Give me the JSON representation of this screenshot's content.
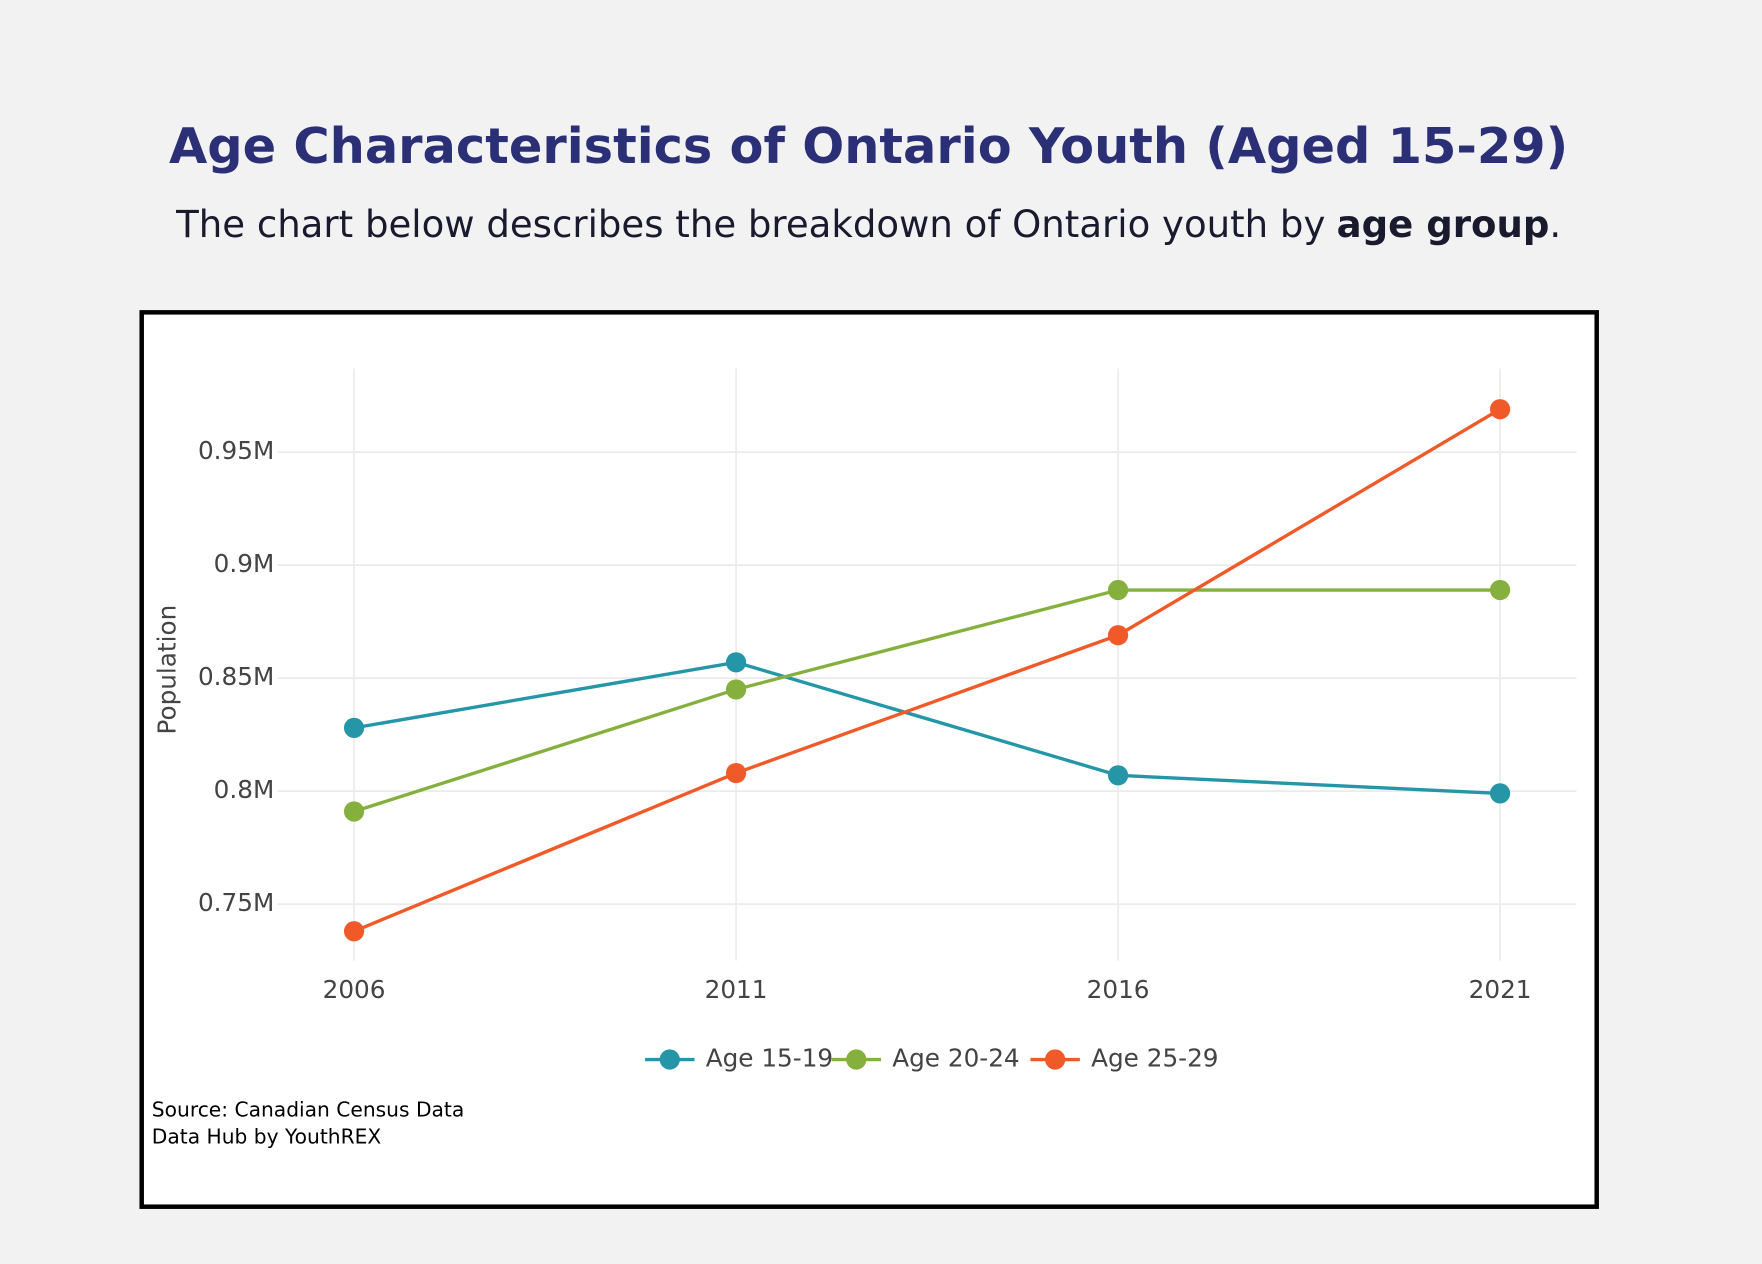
{
  "chart_data": {
    "type": "line",
    "title": "Age Characteristics of Ontario Youth (Aged 15-29)",
    "subtitle": [
      "The chart below describes the breakdown of Ontario youth by",
      "age group",
      "."
    ],
    "y_label": "Population",
    "x": [
      2006,
      2011,
      2016,
      2021
    ],
    "xlim": [
      2005,
      2022
    ],
    "xticks": [
      2006,
      2011,
      2016,
      2021
    ],
    "ylim": [
      725000,
      987000
    ],
    "yticks": [
      {
        "value": 750000,
        "label": "0.75M"
      },
      {
        "value": 800000,
        "label": "0.8M"
      },
      {
        "value": 850000,
        "label": "0.85M"
      },
      {
        "value": 900000,
        "label": "0.9M"
      },
      {
        "value": 950000,
        "label": "0.95M"
      }
    ],
    "grid": true,
    "legend": "bottom",
    "series": [
      {
        "name": "Age 15-19",
        "color": "#2596a8",
        "values": [
          828000,
          857000,
          807000,
          799000
        ]
      },
      {
        "name": "Age 20-24",
        "color": "#86b03e",
        "values": [
          791000,
          845000,
          889000,
          889000
        ]
      },
      {
        "name": "Age 25-29",
        "color": "#f05a28",
        "values": [
          738000,
          808000,
          869000,
          969000
        ]
      }
    ],
    "source": [
      "Source: Canadian Census Data",
      "Data Hub by YouthREX"
    ]
  }
}
